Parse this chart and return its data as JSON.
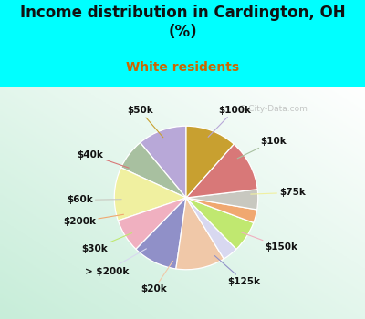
{
  "title": "Income distribution in Cardington, OH\n(%)",
  "subtitle": "White residents",
  "title_color": "#111111",
  "subtitle_color": "#cc6600",
  "bg_color_outer": "#00ffff",
  "watermark": "City-Data.com",
  "labels": [
    "$100k",
    "$10k",
    "$75k",
    "$150k",
    "$125k",
    "$20k",
    "> $200k",
    "$30k",
    "$200k",
    "$60k",
    "$40k",
    "$50k"
  ],
  "values": [
    11.0,
    7.0,
    12.0,
    7.5,
    10.0,
    11.0,
    3.5,
    7.0,
    3.0,
    4.5,
    11.5,
    11.5
  ],
  "colors": [
    "#b8a8d8",
    "#a8c0a0",
    "#f0f0a0",
    "#f0b0c0",
    "#9090c8",
    "#f0c8a8",
    "#d8d8f0",
    "#c0e870",
    "#f0a870",
    "#c8c8c0",
    "#d87878",
    "#c8a030"
  ],
  "label_fontsize": 7.5,
  "title_fontsize": 12,
  "subtitle_fontsize": 10,
  "startangle": 90
}
